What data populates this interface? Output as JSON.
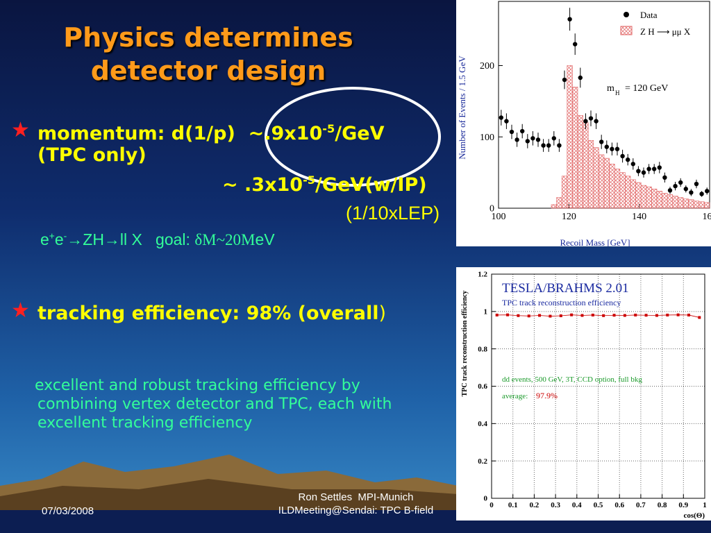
{
  "slide": {
    "title_lines": [
      "Physics determines",
      "detector design"
    ],
    "bullets": [
      {
        "marker": "★",
        "line1": {
          "pre": "momentum: d(1/p)  ~.9x10",
          "sup": "-5",
          "post": "/GeV"
        },
        "line2": "(TPC only)",
        "line3": {
          "pre": "~ .3x10",
          "sup": "-5",
          "post": "/GeV(w/IP)"
        },
        "line4": "(1/10xLEP)",
        "process": {
          "a": "e",
          "a_sup": "+",
          "b": "e",
          "b_sup": "-",
          "c": "→ZH→ll X   goal: ",
          "d": "δM~20M",
          "e": "eV"
        }
      },
      {
        "marker": "★",
        "text": "tracking efficiency: 98% (overall",
        "close": ")",
        "note_lines": [
          "excellent and robust tracking efficiency by",
          "combining vertex detector and TPC, each with",
          "excellent tracking efficiency"
        ]
      }
    ],
    "footer": {
      "date": "07/03/2008",
      "author": "Ron Settles  MPI-Munich",
      "event": "ILDMeeting@Sendai: TPC B-field"
    }
  },
  "chart_data": [
    {
      "type": "histogram",
      "xlabel": "Recoil Mass   [GeV]",
      "ylabel": "Number of Events / 1.5 GeV",
      "legend": [
        "Data",
        "Z H ⟶ μμ X"
      ],
      "annotation": {
        "symbol": "m",
        "subscript": "H",
        "text": "=  120  GeV"
      },
      "xlim": [
        100,
        160
      ],
      "ylim": [
        0,
        290
      ],
      "xticks": [
        100,
        120,
        140,
        160
      ],
      "yticks": [
        0,
        100,
        200
      ],
      "bins": [
        115,
        116.5,
        118,
        119.5,
        121,
        122.5,
        124,
        125.5,
        127,
        128.5,
        130,
        131.5,
        133,
        134.5,
        136,
        137.5,
        139,
        140.5,
        142,
        143.5,
        145,
        146.5,
        148,
        149.5,
        151,
        152.5,
        154,
        155.5,
        157,
        158.5,
        160
      ],
      "counts": [
        5,
        15,
        45,
        200,
        170,
        130,
        120,
        95,
        85,
        75,
        70,
        62,
        55,
        50,
        45,
        40,
        36,
        32,
        30,
        27,
        24,
        21,
        19,
        17,
        15,
        13,
        12,
        10,
        9,
        8
      ],
      "hist_color": "#e06060",
      "points": {
        "color": "#000000",
        "x": [
          100.75,
          102.25,
          103.75,
          105.25,
          106.75,
          108.25,
          109.75,
          111.25,
          112.75,
          114.25,
          115.75,
          117.25,
          118.75,
          120.25,
          121.75,
          123.25,
          124.75,
          126.25,
          127.75,
          129.25,
          130.75,
          132.25,
          133.75,
          135.25,
          136.75,
          138.25,
          139.75,
          141.25,
          142.75,
          144.25,
          145.75,
          147.25,
          148.75,
          150.25,
          151.75,
          153.25,
          154.75,
          156.25,
          157.75,
          159.25
        ],
        "values": [
          127,
          122,
          107,
          96,
          108,
          94,
          98,
          96,
          88,
          88,
          98,
          88,
          180,
          265,
          230,
          183,
          122,
          126,
          122,
          93,
          86,
          83,
          83,
          73,
          68,
          62,
          52,
          50,
          55,
          55,
          57,
          43,
          25,
          31,
          36,
          27,
          22,
          34,
          20,
          24
        ],
        "errors": [
          11,
          11,
          10,
          10,
          10,
          10,
          10,
          10,
          9,
          9,
          10,
          9,
          13,
          16,
          15,
          14,
          11,
          11,
          11,
          10,
          9,
          9,
          9,
          9,
          8,
          8,
          7,
          7,
          7,
          7,
          8,
          7,
          5,
          6,
          6,
          5,
          5,
          6,
          4,
          5
        ]
      }
    },
    {
      "type": "scatter",
      "title": "TESLA/BRAHMS 2.01",
      "subtitle": "TPC track reconstruction efficiency",
      "note": "dd events, 500 GeV, 3T, CCD option, full bkg",
      "average_label": "average:",
      "average_value": "97.9%",
      "xlabel": "cos(Θ)",
      "ylabel": "TPC track reconstruction efficiency",
      "xlim": [
        0,
        1
      ],
      "ylim": [
        0,
        1.2
      ],
      "xticks": [
        0,
        0.1,
        0.2,
        0.3,
        0.4,
        0.5,
        0.6,
        0.7,
        0.8,
        0.9,
        1
      ],
      "yticks": [
        0,
        0.2,
        0.4,
        0.6,
        0.8,
        1,
        1.2
      ],
      "grid": true,
      "color": "#cc0000",
      "x": [
        0.025,
        0.075,
        0.125,
        0.175,
        0.225,
        0.275,
        0.325,
        0.375,
        0.425,
        0.475,
        0.525,
        0.575,
        0.625,
        0.675,
        0.725,
        0.775,
        0.825,
        0.875,
        0.925,
        0.975
      ],
      "values": [
        0.981,
        0.982,
        0.978,
        0.976,
        0.979,
        0.975,
        0.977,
        0.982,
        0.979,
        0.981,
        0.978,
        0.98,
        0.979,
        0.981,
        0.98,
        0.979,
        0.981,
        0.982,
        0.981,
        0.968
      ]
    }
  ]
}
